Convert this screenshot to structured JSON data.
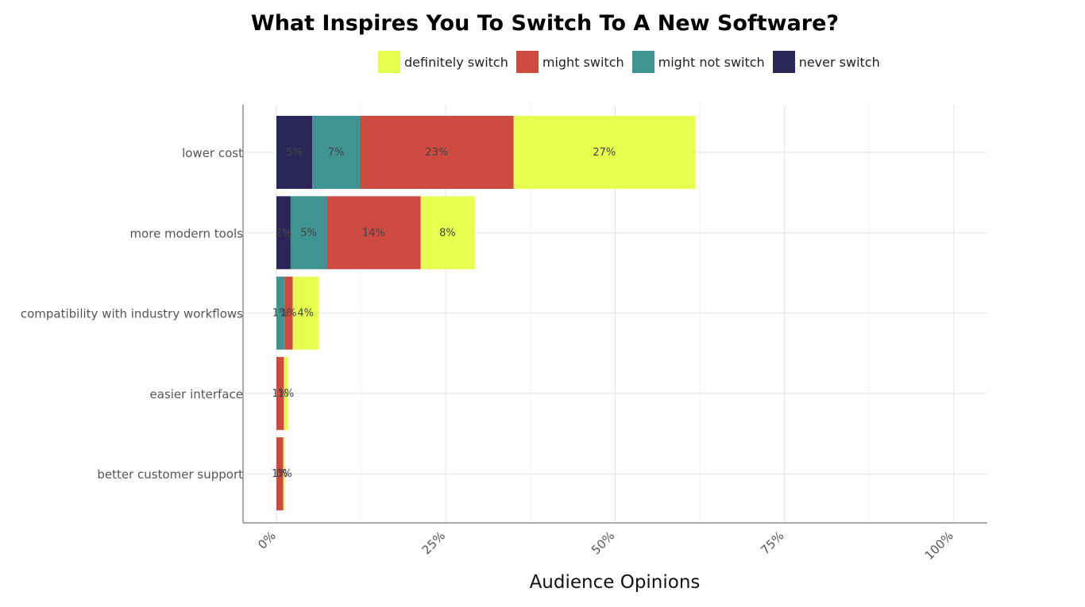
{
  "chart_data": {
    "type": "bar",
    "orientation": "horizontal",
    "stacked": true,
    "title": "What Inspires You To Switch To A New Software?",
    "xlabel": "Audience Opinions",
    "ylabel": "",
    "xlim": [
      0,
      100
    ],
    "x_ticks": [
      "0%",
      "25%",
      "50%",
      "75%",
      "100%"
    ],
    "grid": true,
    "legend_position": "top",
    "categories": [
      "lower cost",
      "more modern tools",
      "compatibility with industry workflows",
      "easier interface",
      "better customer support"
    ],
    "series": [
      {
        "name": "never switch",
        "color": "#2a2758",
        "values": [
          5.3,
          2.1,
          0,
          0,
          0
        ],
        "labels": [
          "5%",
          "2%",
          "",
          "",
          ""
        ]
      },
      {
        "name": "might not switch",
        "color": "#3f9390",
        "values": [
          7.0,
          5.3,
          1.2,
          0,
          0
        ],
        "labels": [
          "7%",
          "5%",
          "1%",
          "",
          ""
        ]
      },
      {
        "name": "might switch",
        "color": "#cc4a3f",
        "values": [
          22.7,
          13.9,
          1.2,
          1.1,
          1.0
        ],
        "labels": [
          "23%",
          "14%",
          "1%",
          "1%",
          "1%"
        ]
      },
      {
        "name": "definitely switch",
        "color": "#e6ff4f",
        "values": [
          26.8,
          7.9,
          3.8,
          0.6,
          0.2
        ],
        "labels": [
          "27%",
          "8%",
          "4%",
          "1%",
          "0%"
        ]
      }
    ],
    "legend_order": [
      "definitely switch",
      "might switch",
      "might not switch",
      "never switch"
    ]
  }
}
